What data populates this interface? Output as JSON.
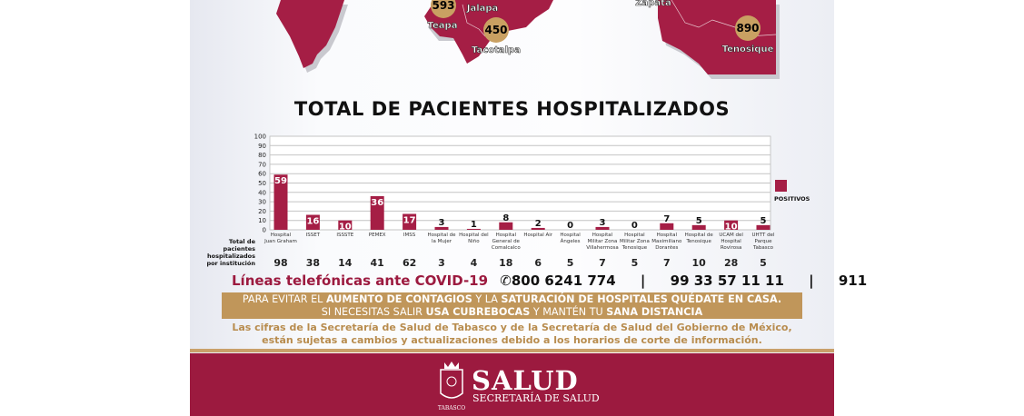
{
  "map": {
    "municipalities": [
      {
        "name": "Teapa",
        "value": "593"
      },
      {
        "name": "Jalapa",
        "value": ""
      },
      {
        "name": "Tacotalpa",
        "value": "450"
      },
      {
        "name": "Zapata",
        "value": ""
      },
      {
        "name": "Tenosique",
        "value": "890"
      }
    ]
  },
  "colors": {
    "maroon": "#9c1a3f",
    "bar": "#a51e45",
    "gold": "#c0965a"
  },
  "chart_data": {
    "type": "bar",
    "title": "TOTAL DE PACIENTES HOSPITALIZADOS",
    "ylim": [
      0,
      100
    ],
    "yticks": [
      0,
      10,
      20,
      30,
      40,
      50,
      60,
      70,
      80,
      90,
      100
    ],
    "grid": true,
    "legend_position": "right",
    "categories": [
      "Hospital Juan Graham",
      "ISSET",
      "ISSSTE",
      "PEMEX",
      "IMSS",
      "Hospital de la Mujer",
      "Hospital del Niño",
      "Hospital General de Comalcalco",
      "Hospital Air",
      "Hospital Ángeles",
      "Hospital Militar Zona Villahermosa",
      "Hospital Militar Zona Tenosique",
      "Hospital Maximiliano Dorantes",
      "Hospital de Tenosique",
      "UCAM del Hospital Rovirosa",
      "UHTT del Parque Tabasco"
    ],
    "series": [
      {
        "name": "POSITIVOS",
        "values": [
          59,
          16,
          10,
          36,
          17,
          3,
          1,
          8,
          2,
          0,
          3,
          0,
          7,
          5,
          10,
          5
        ]
      }
    ],
    "totals_label": "Total de pacientes hospitalizados por institución",
    "totals": [
      98,
      38,
      14,
      41,
      62,
      3,
      4,
      18,
      6,
      5,
      7,
      5,
      7,
      10,
      28,
      5
    ]
  },
  "phones": {
    "label": "Líneas telefónicas ante COVID-19",
    "numbers": [
      "800 6241 774",
      "99 33 57 11 11",
      "911"
    ],
    "sep": "|"
  },
  "banner": {
    "line1": [
      "PARA EVITAR EL ",
      "AUMENTO DE CONTAGIOS",
      " Y LA ",
      "SATURACIÓN DE HOSPITALES QUÉDATE EN CASA."
    ],
    "line2": [
      "SI NECESITAS SALIR ",
      "USA CUBREBOCAS",
      " Y MANTÉN TU ",
      "SANA DISTANCIA"
    ]
  },
  "disclaimer": {
    "line1": "Las cifras de la Secretaría de Salud de Tabasco y de la Secretaría de Salud del Gobierno de México,",
    "line2": "están sujetas a cambios y actualizaciones debido a los horarios de corte de información."
  },
  "footer": {
    "brand": "SALUD",
    "subtitle": "SECRETARÍA DE SALUD",
    "seal_text": "TABASCO"
  }
}
